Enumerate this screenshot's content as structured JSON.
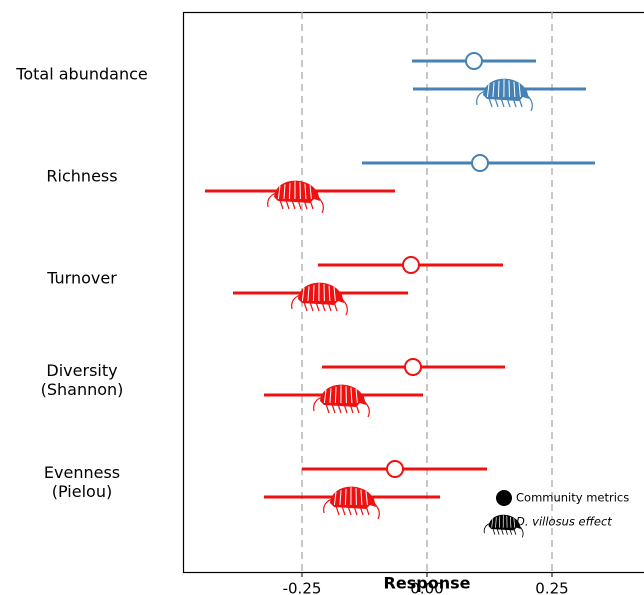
{
  "chart_data": {
    "type": "forest",
    "x_label": "Response",
    "categories": [
      "Total abundance",
      "Richness",
      "Turnover",
      "Diversity\n(Shannon)",
      "Evenness\n(Pielou)"
    ],
    "xlim": [
      -0.488,
      0.434
    ],
    "xticks": [
      -0.25,
      {
        "value": 0,
        "label": "0.00"
      },
      0.25
    ],
    "grid": true,
    "legend": "bottom-right",
    "series": [
      {
        "name": "Community metrics",
        "marker": "circle",
        "color": "#000000",
        "colors": [
          "#4682b4",
          "#4682b4",
          "#ee1111",
          "#ee1111",
          "#ee1111"
        ],
        "values": [
          0.094,
          0.106,
          -0.032,
          -0.028,
          -0.064
        ],
        "lower": [
          -0.03,
          -0.13,
          -0.218,
          -0.21,
          -0.25
        ],
        "upper": [
          0.218,
          0.336,
          0.152,
          0.156,
          0.12
        ]
      },
      {
        "name": "D. villosus effect",
        "marker": "amphipod",
        "color": "#000000",
        "colors": [
          "#4682b4",
          "#ee1111",
          "#ee1111",
          "#ee1111",
          "#ee1111"
        ],
        "values": [
          0.156,
          -0.262,
          -0.214,
          -0.17,
          -0.15
        ],
        "lower": [
          -0.028,
          -0.444,
          -0.388,
          -0.326,
          -0.326
        ],
        "upper": [
          0.318,
          -0.064,
          -0.038,
          -0.008,
          0.026
        ]
      }
    ]
  }
}
